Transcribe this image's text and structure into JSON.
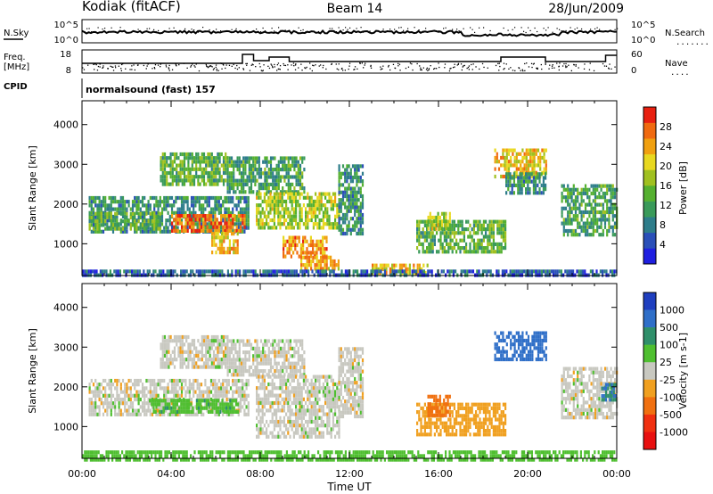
{
  "header": {
    "station": "Kodiak (fitACF)",
    "beam": "Beam 14",
    "date": "28/Jun/2009"
  },
  "top_panels": {
    "nsky": {
      "left_label": "N.Sky",
      "right_label": "N.Search",
      "ytick_top": "10^5",
      "ytick_bottom": "10^0",
      "ytick_top_right": "10^5",
      "ytick_bottom_right": "10^0"
    },
    "freq": {
      "left_label_1": "Freq.",
      "left_label_2": "[MHz]",
      "right_label": "Nave",
      "ytick_top": "18",
      "ytick_bottom": "8",
      "ytick_top_right": "60",
      "ytick_bottom_right": "0"
    },
    "cpid": {
      "label": "CPID",
      "value": "normalsound (fast) 157"
    }
  },
  "chart_data": [
    {
      "type": "heatmap",
      "name": "power",
      "ylabel": "Slant Range [km]",
      "xlabel": "",
      "x_ticks": [
        "00:00",
        "04:00",
        "08:00",
        "12:00",
        "16:00",
        "20:00",
        "00:00"
      ],
      "xlim_hours": [
        0,
        24
      ],
      "y_ticks": [
        1000,
        2000,
        3000,
        4000
      ],
      "ylim": [
        200,
        4600
      ],
      "colorbar": {
        "label": "Power [dB]",
        "ticks": [
          4,
          8,
          12,
          16,
          20,
          24,
          28
        ],
        "range": [
          0,
          32
        ],
        "colors": [
          "#1f1fe0",
          "#2a4fb8",
          "#2e7d8a",
          "#3a9a5a",
          "#55b030",
          "#a0c020",
          "#e8d820",
          "#f0a010",
          "#f06a10",
          "#e82010"
        ]
      },
      "regions": [
        {
          "t0": 0.3,
          "t1": 7.5,
          "r0": 1300,
          "r1": 2200,
          "p": 10
        },
        {
          "t0": 0.3,
          "t1": 3.5,
          "r0": 1400,
          "r1": 1800,
          "p": 14
        },
        {
          "t0": 4.0,
          "t1": 7.3,
          "r0": 1350,
          "r1": 1750,
          "p": 27
        },
        {
          "t0": 5.8,
          "t1": 7.0,
          "r0": 800,
          "r1": 1300,
          "p": 22
        },
        {
          "t0": 3.5,
          "t1": 6.5,
          "r0": 2500,
          "r1": 3300,
          "p": 14
        },
        {
          "t0": 6.5,
          "t1": 10.0,
          "r0": 2300,
          "r1": 3200,
          "p": 12
        },
        {
          "t0": 7.8,
          "t1": 11.5,
          "r0": 1400,
          "r1": 2300,
          "p": 18
        },
        {
          "t0": 9.0,
          "t1": 11.0,
          "r0": 700,
          "r1": 1200,
          "p": 25
        },
        {
          "t0": 9.8,
          "t1": 11.5,
          "r0": 400,
          "r1": 700,
          "p": 24
        },
        {
          "t0": 11.5,
          "t1": 12.6,
          "r0": 1300,
          "r1": 3000,
          "p": 10
        },
        {
          "t0": 13.0,
          "t1": 15.5,
          "r0": 300,
          "r1": 500,
          "p": 22
        },
        {
          "t0": 15.0,
          "t1": 19.0,
          "r0": 800,
          "r1": 1600,
          "p": 14
        },
        {
          "t0": 15.5,
          "t1": 16.5,
          "r0": 1400,
          "r1": 1800,
          "p": 18
        },
        {
          "t0": 18.5,
          "t1": 20.8,
          "r0": 2700,
          "r1": 3400,
          "p": 22
        },
        {
          "t0": 19.0,
          "t1": 20.8,
          "r0": 2300,
          "r1": 2800,
          "p": 10
        },
        {
          "t0": 21.5,
          "t1": 24.0,
          "r0": 1200,
          "r1": 2500,
          "p": 12
        },
        {
          "t0": 0.0,
          "t1": 24.0,
          "r0": 200,
          "r1": 350,
          "p": 6
        }
      ]
    },
    {
      "type": "heatmap",
      "name": "velocity",
      "ylabel": "Slant Range [km]",
      "xlabel": "Time UT",
      "x_ticks": [
        "00:00",
        "04:00",
        "08:00",
        "12:00",
        "16:00",
        "20:00",
        "00:00"
      ],
      "xlim_hours": [
        0,
        24
      ],
      "y_ticks": [
        1000,
        2000,
        3000,
        4000
      ],
      "ylim": [
        200,
        4600
      ],
      "colorbar": {
        "label": "Velocity [m s-1]",
        "tick_labels": [
          "1000",
          "500",
          "100",
          "25",
          "-25",
          "-100",
          "-500",
          "-1000"
        ],
        "colors": [
          "#1f3fbf",
          "#2f6fc8",
          "#2f8f6a",
          "#4fbf30",
          "#c8c8c0",
          "#f0a020",
          "#f07010",
          "#f03010",
          "#e81010"
        ]
      },
      "regions": [
        {
          "t0": 0.3,
          "t1": 7.5,
          "r0": 1300,
          "r1": 2200,
          "v": 0
        },
        {
          "t0": 3.0,
          "t1": 7.0,
          "r0": 1400,
          "r1": 1700,
          "v": 80
        },
        {
          "t0": 3.5,
          "t1": 6.5,
          "r0": 2500,
          "r1": 3300,
          "v": 0
        },
        {
          "t0": 6.5,
          "t1": 10.0,
          "r0": 2300,
          "r1": 3200,
          "v": 0
        },
        {
          "t0": 7.8,
          "t1": 11.5,
          "r0": 700,
          "r1": 2300,
          "v": 0
        },
        {
          "t0": 11.5,
          "t1": 12.6,
          "r0": 1300,
          "r1": 3000,
          "v": 0
        },
        {
          "t0": 15.0,
          "t1": 19.0,
          "r0": 800,
          "r1": 1600,
          "v": -60
        },
        {
          "t0": 15.5,
          "t1": 16.5,
          "r0": 1300,
          "r1": 1800,
          "v": -300
        },
        {
          "t0": 18.5,
          "t1": 20.8,
          "r0": 2700,
          "r1": 3400,
          "v": 700
        },
        {
          "t0": 21.5,
          "t1": 24.0,
          "r0": 1200,
          "r1": 2500,
          "v": 0
        },
        {
          "t0": 23.3,
          "t1": 24.0,
          "r0": 1700,
          "r1": 2100,
          "v": 500
        },
        {
          "t0": 0.0,
          "t1": 24.0,
          "r0": 200,
          "r1": 400,
          "v": 60
        }
      ]
    }
  ]
}
